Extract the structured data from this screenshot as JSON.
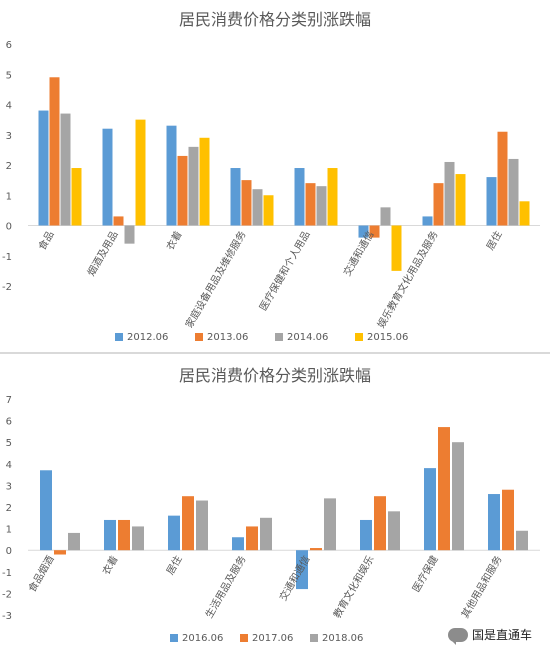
{
  "chart_data": [
    {
      "type": "bar",
      "title": "居民消费价格分类别涨跌幅",
      "categories": [
        "食品",
        "烟酒及用品",
        "衣着",
        "家庭设备用品及维修服务",
        "医疗保健和个人用品",
        "交通和通信",
        "娱乐教育文化用品及服务",
        "居住"
      ],
      "series": [
        {
          "name": "2012.06",
          "color": "#5b9bd5",
          "values": [
            3.8,
            3.2,
            3.3,
            1.9,
            1.9,
            -0.4,
            0.3,
            1.6
          ]
        },
        {
          "name": "2013.06",
          "color": "#ed7d31",
          "values": [
            4.9,
            0.3,
            2.3,
            1.5,
            1.4,
            -0.4,
            1.4,
            3.1
          ]
        },
        {
          "name": "2014.06",
          "color": "#a5a5a5",
          "values": [
            3.7,
            -0.6,
            2.6,
            1.2,
            1.3,
            0.6,
            2.1,
            2.2
          ]
        },
        {
          "name": "2015.06",
          "color": "#ffc000",
          "values": [
            1.9,
            3.5,
            2.9,
            1.0,
            1.9,
            -1.5,
            1.7,
            0.8
          ]
        }
      ],
      "ylim": [
        -2,
        6
      ],
      "yticks": [
        "-2",
        "-1",
        "0",
        "1",
        "2",
        "3",
        "4",
        "5",
        "6"
      ],
      "grid": false,
      "legend": "bottom"
    },
    {
      "type": "bar",
      "title": "居民消费价格分类别涨跌幅",
      "categories": [
        "食品烟酒",
        "衣着",
        "居住",
        "生活用品及服务",
        "交通和通信",
        "教育文化和娱乐",
        "医疗保健",
        "其他用品和服务"
      ],
      "series": [
        {
          "name": "2016.06",
          "color": "#5b9bd5",
          "values": [
            3.7,
            1.4,
            1.6,
            0.6,
            -1.8,
            1.4,
            3.8,
            2.6
          ]
        },
        {
          "name": "2017.06",
          "color": "#ed7d31",
          "values": [
            -0.2,
            1.4,
            2.5,
            1.1,
            0.1,
            2.5,
            5.7,
            2.8
          ]
        },
        {
          "name": "2018.06",
          "color": "#a5a5a5",
          "values": [
            0.8,
            1.1,
            2.3,
            1.5,
            2.4,
            1.8,
            5.0,
            0.9
          ]
        }
      ],
      "ylim": [
        -3,
        7
      ],
      "yticks": [
        "-3",
        "-2",
        "-1",
        "0",
        "1",
        "2",
        "3",
        "4",
        "5",
        "6",
        "7"
      ],
      "grid": false,
      "legend": "bottom"
    }
  ],
  "watermark": {
    "text": "国是直通车",
    "icon": "wechat-icon"
  }
}
